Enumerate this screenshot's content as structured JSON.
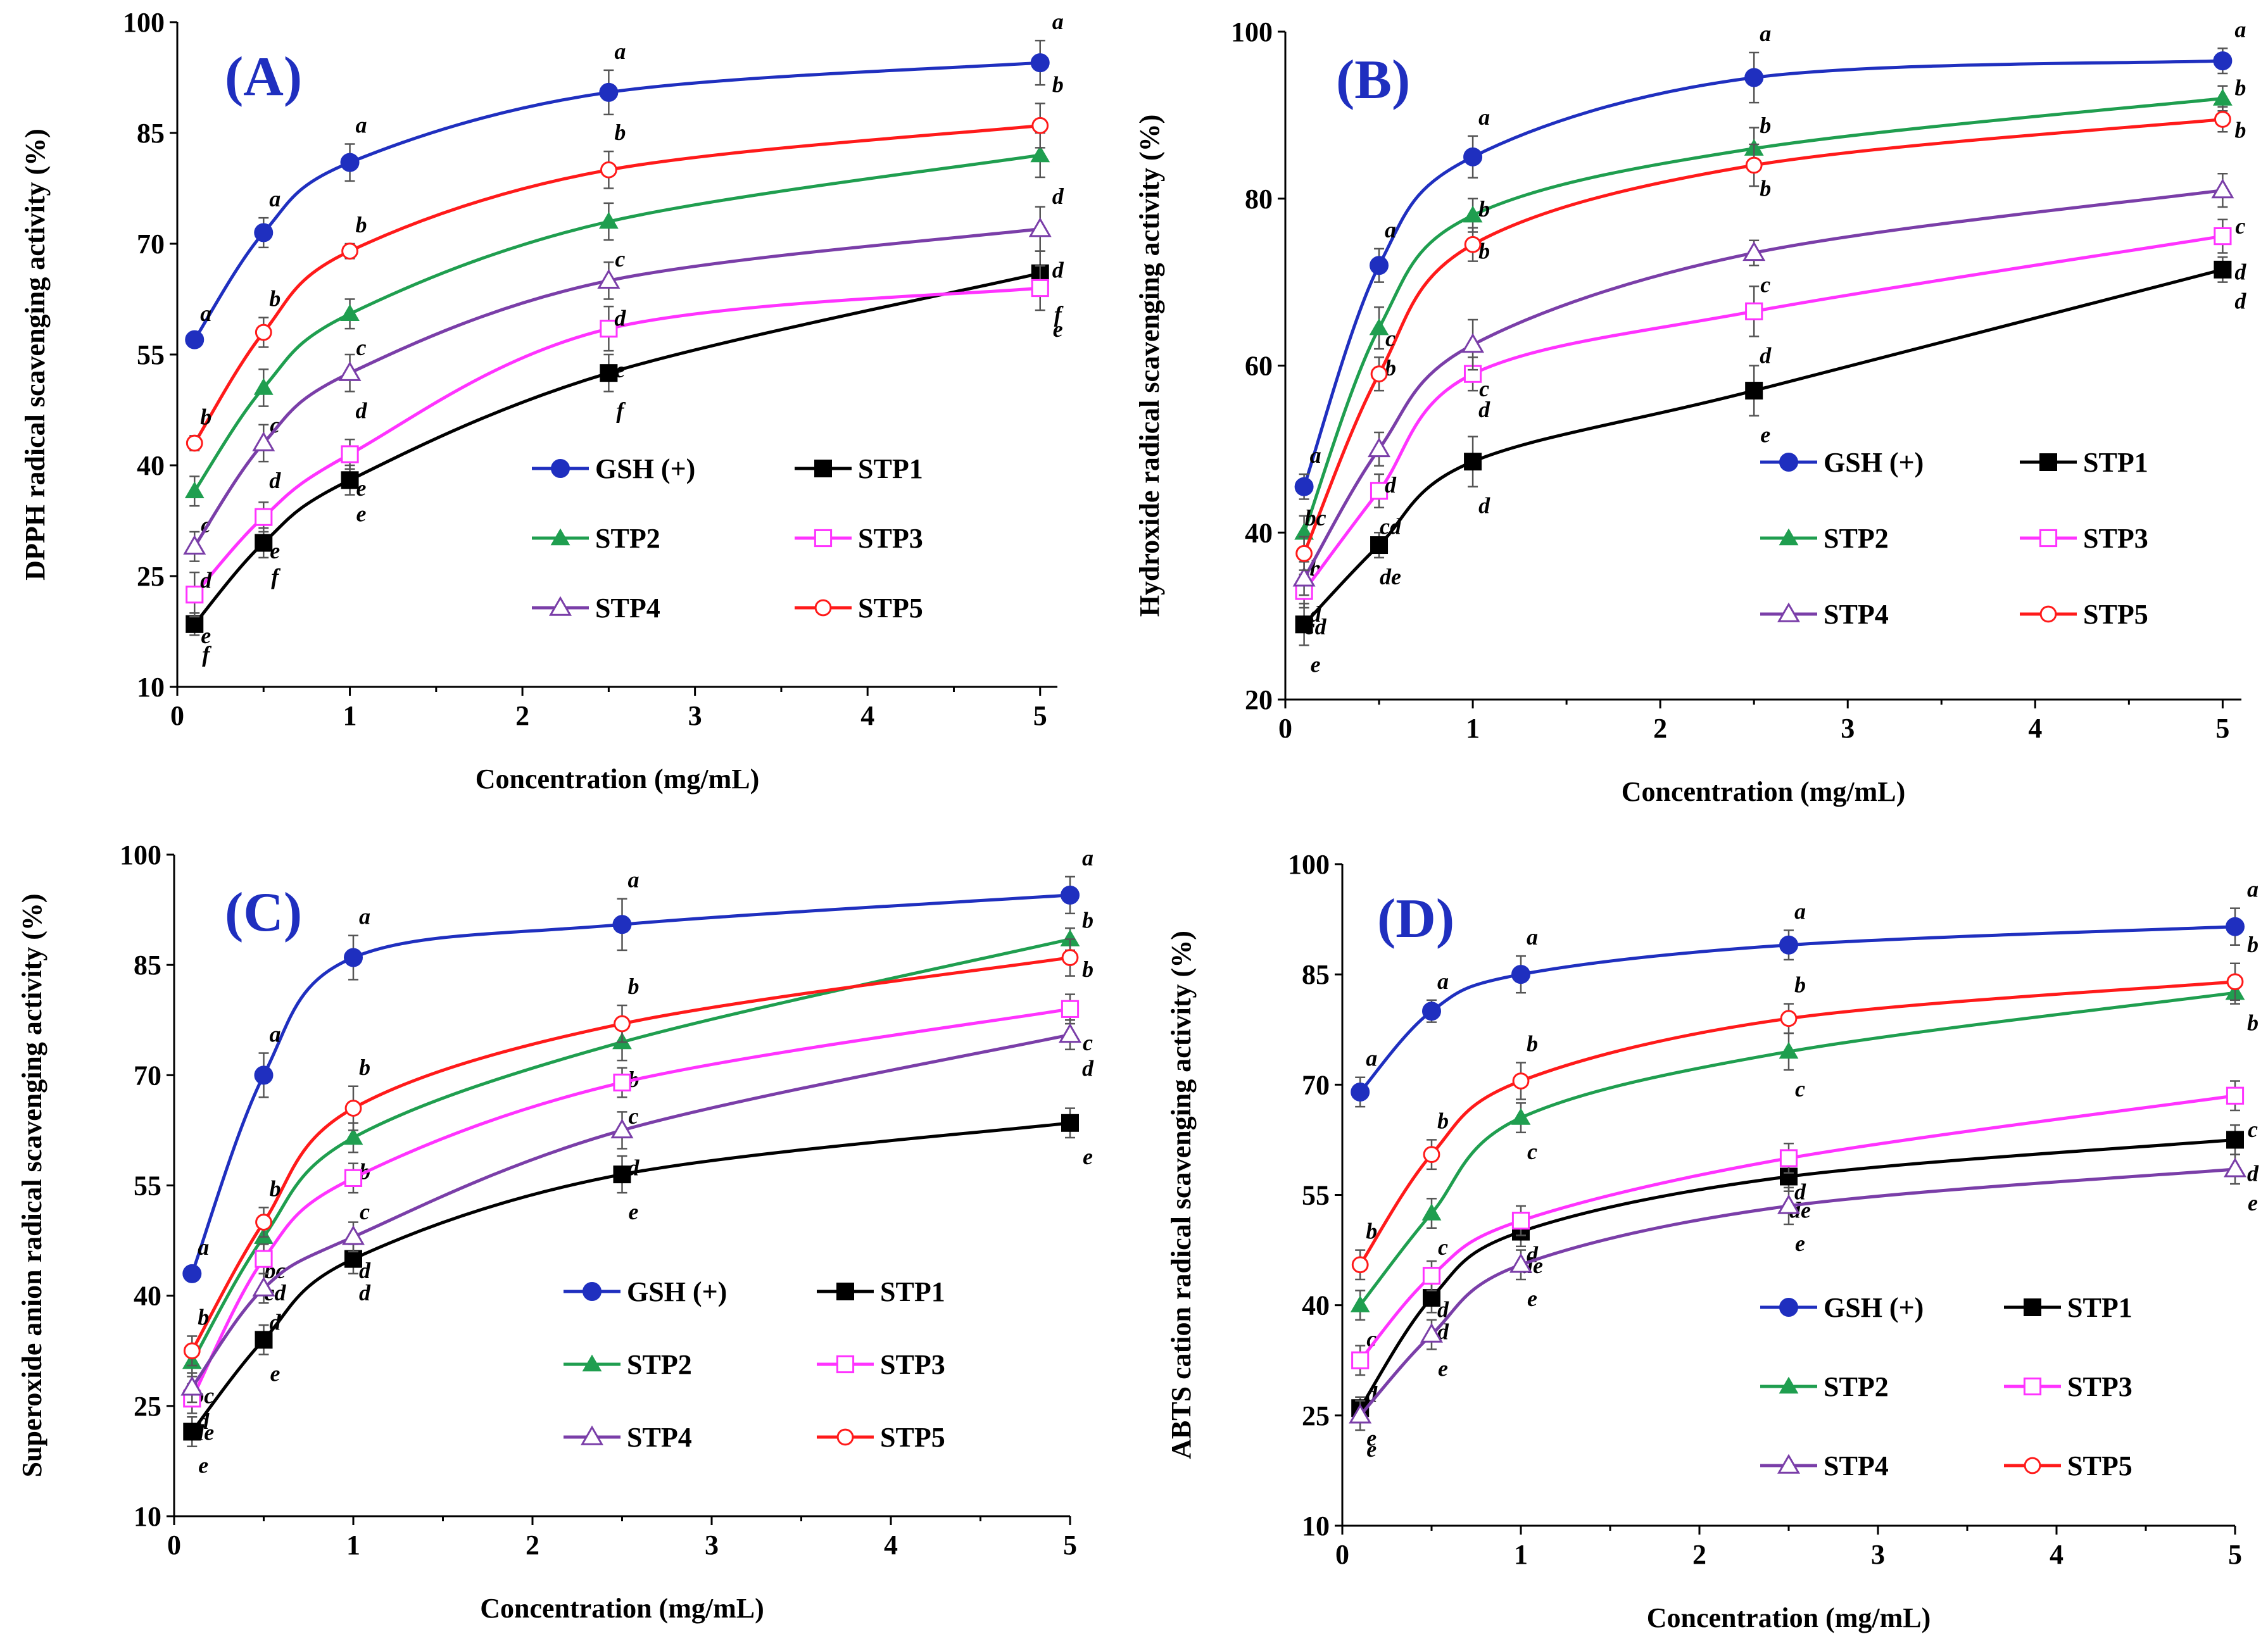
{
  "series_styles": [
    {
      "name": "GSH (+)",
      "color": "#1f2fbf",
      "marker": "filled-circle"
    },
    {
      "name": "STP1",
      "color": "#000000",
      "marker": "filled-square"
    },
    {
      "name": "STP2",
      "color": "#1f9e4f",
      "marker": "filled-triangle"
    },
    {
      "name": "STP3",
      "color": "#ff33ff",
      "marker": "open-square"
    },
    {
      "name": "STP4",
      "color": "#7a3ea8",
      "marker": "open-triangle"
    },
    {
      "name": "STP5",
      "color": "#ff1a1a",
      "marker": "open-circle"
    }
  ],
  "chart_data": [
    {
      "type": "line",
      "panel": "(A)",
      "title": "",
      "xlabel": "Concentration (mg/mL)",
      "ylabel": "DPPH radical scavenging activity (%)",
      "xlim": [
        0,
        5.1
      ],
      "ylim": [
        10,
        100
      ],
      "xticks": [
        "0",
        "1",
        "2",
        "3",
        "4",
        "5"
      ],
      "yticks": [
        "10",
        "25",
        "40",
        "55",
        "70",
        "85",
        "100"
      ],
      "x": [
        0.1,
        0.5,
        1,
        2.5,
        5
      ],
      "series": [
        {
          "name": "GSH (+)",
          "values": [
            57,
            71.5,
            81,
            90.5,
            94.5
          ],
          "errors": [
            1,
            2,
            2.5,
            3,
            3
          ],
          "letters": [
            "a",
            "a",
            "a",
            "a",
            "a"
          ]
        },
        {
          "name": "STP1",
          "values": [
            18.5,
            29.5,
            38,
            52.5,
            66
          ],
          "errors": [
            1.5,
            2,
            2,
            2.5,
            3
          ],
          "letters": [
            "f",
            "f",
            "e",
            "f",
            "f"
          ]
        },
        {
          "name": "STP2",
          "values": [
            36.5,
            50.5,
            60.5,
            73,
            82
          ],
          "errors": [
            2,
            2.5,
            2,
            2.5,
            3
          ],
          "letters": [
            "c",
            "c",
            "c",
            "c",
            "d"
          ]
        },
        {
          "name": "STP3",
          "values": [
            22.5,
            33,
            41.5,
            58.5,
            64
          ],
          "errors": [
            3,
            2,
            2,
            3,
            3
          ],
          "letters": [
            "e",
            "e",
            "e",
            "e",
            "e"
          ]
        },
        {
          "name": "STP4",
          "values": [
            29,
            43,
            52.5,
            65,
            72
          ],
          "errors": [
            2,
            2.5,
            2.5,
            2.5,
            3
          ],
          "letters": [
            "d",
            "d",
            "d",
            "d",
            "d"
          ]
        },
        {
          "name": "STP5",
          "values": [
            43,
            58,
            69,
            80,
            86
          ],
          "errors": [
            1,
            2,
            1,
            2.5,
            3
          ],
          "letters": [
            "b",
            "b",
            "b",
            "b",
            "b"
          ]
        }
      ]
    },
    {
      "type": "line",
      "panel": "(B)",
      "title": "",
      "xlabel": "Concentration (mg/mL)",
      "ylabel": "Hydroxide radical scavenging activity (%)",
      "xlim": [
        0,
        5.1
      ],
      "ylim": [
        20,
        100
      ],
      "xticks": [
        "0",
        "1",
        "2",
        "3",
        "4",
        "5"
      ],
      "yticks": [
        "20",
        "40",
        "60",
        "80",
        "100"
      ],
      "x": [
        0.1,
        0.5,
        1,
        2.5,
        5
      ],
      "series": [
        {
          "name": "GSH (+)",
          "values": [
            45.5,
            72,
            85,
            94.5,
            96.5
          ],
          "errors": [
            1.5,
            2,
            2.5,
            3,
            1.5
          ],
          "letters": [
            "a",
            "a",
            "a",
            "a",
            "a"
          ]
        },
        {
          "name": "STP1",
          "values": [
            29,
            38.5,
            48.5,
            57,
            71.5
          ],
          "errors": [
            2.5,
            1.5,
            3,
            3,
            1.5
          ],
          "letters": [
            "e",
            "de",
            "d",
            "e",
            "d"
          ]
        },
        {
          "name": "STP2",
          "values": [
            40,
            64.5,
            78,
            86,
            92
          ],
          "errors": [
            2,
            2.5,
            2,
            2.5,
            1.5
          ],
          "letters": [
            "b",
            "b",
            "b",
            "b",
            "b"
          ]
        },
        {
          "name": "STP3",
          "values": [
            33,
            45,
            59,
            66.5,
            75.5
          ],
          "errors": [
            2,
            2,
            2,
            3,
            2
          ],
          "letters": [
            "cd",
            "cd",
            "d",
            "d",
            "d"
          ]
        },
        {
          "name": "STP4",
          "values": [
            34.5,
            50,
            62.5,
            73.5,
            81
          ],
          "errors": [
            2,
            2,
            3,
            1.5,
            2
          ],
          "letters": [
            "d",
            "d",
            "c",
            "c",
            "c"
          ]
        },
        {
          "name": "STP5",
          "values": [
            37.5,
            59,
            74.5,
            84,
            89.5
          ],
          "errors": [
            2,
            2,
            2,
            2.5,
            1.5
          ],
          "letters": [
            "bc",
            "c",
            "b",
            "b",
            "b"
          ]
        }
      ]
    },
    {
      "type": "line",
      "panel": "(C)",
      "title": "",
      "xlabel": "Concentration (mg/mL)",
      "ylabel": "Superoxide anion radical scavenging activity (%)",
      "xlim": [
        0,
        5
      ],
      "ylim": [
        10,
        100
      ],
      "xticks": [
        "0",
        "1",
        "2",
        "3",
        "4",
        "5"
      ],
      "yticks": [
        "10",
        "25",
        "40",
        "55",
        "70",
        "85",
        "100"
      ],
      "x": [
        0.1,
        0.5,
        1,
        2.5,
        5
      ],
      "series": [
        {
          "name": "GSH (+)",
          "values": [
            43,
            70,
            86,
            90.5,
            94.5
          ],
          "errors": [
            1,
            3,
            3,
            3.5,
            2.5
          ],
          "letters": [
            "a",
            "a",
            "a",
            "a",
            "a"
          ]
        },
        {
          "name": "STP1",
          "values": [
            21.5,
            34,
            45,
            56.5,
            63.5
          ],
          "errors": [
            2,
            2,
            2,
            2.5,
            2
          ],
          "letters": [
            "e",
            "e",
            "d",
            "e",
            "e"
          ]
        },
        {
          "name": "STP2",
          "values": [
            31,
            48,
            61.5,
            74.5,
            88.5
          ],
          "errors": [
            2,
            2,
            2,
            2.5,
            1.5
          ],
          "letters": [
            "bc",
            "bc",
            "b",
            "b",
            "b"
          ]
        },
        {
          "name": "STP3",
          "values": [
            26,
            45,
            56,
            69,
            79
          ],
          "errors": [
            2,
            2,
            2,
            2,
            2
          ],
          "letters": [
            "de",
            "cd",
            "c",
            "c",
            "c"
          ]
        },
        {
          "name": "STP4",
          "values": [
            27.5,
            41,
            48,
            62.5,
            75.5
          ],
          "errors": [
            2,
            2,
            2,
            2.5,
            2
          ],
          "letters": [
            "d",
            "d",
            "d",
            "d",
            "d"
          ]
        },
        {
          "name": "STP5",
          "values": [
            32.5,
            50,
            65.5,
            77,
            86
          ],
          "errors": [
            2,
            2,
            3,
            2.5,
            2.5
          ],
          "letters": [
            "b",
            "b",
            "b",
            "b",
            "b"
          ]
        }
      ]
    },
    {
      "type": "line",
      "panel": "(D)",
      "title": "",
      "xlabel": "Concentration (mg/mL)",
      "ylabel": "ABTS cation radical scavenging activity (%)",
      "xlim": [
        0,
        5
      ],
      "ylim": [
        10,
        100
      ],
      "xticks": [
        "0",
        "1",
        "2",
        "3",
        "4",
        "5"
      ],
      "yticks": [
        "10",
        "25",
        "40",
        "55",
        "70",
        "85",
        "100"
      ],
      "x": [
        0.1,
        0.5,
        1,
        2.5,
        5
      ],
      "series": [
        {
          "name": "GSH (+)",
          "values": [
            69,
            80,
            85,
            89,
            91.5
          ],
          "errors": [
            2,
            1.5,
            2.5,
            2,
            2.5
          ],
          "letters": [
            "a",
            "a",
            "a",
            "a",
            "a"
          ]
        },
        {
          "name": "STP1",
          "values": [
            26,
            41,
            50,
            57.5,
            62.5
          ],
          "errors": [
            1.5,
            2,
            2,
            2,
            2
          ],
          "letters": [
            "e",
            "d",
            "de",
            "de",
            "d"
          ]
        },
        {
          "name": "STP2",
          "values": [
            40,
            52.5,
            65.5,
            74.5,
            82.5
          ],
          "errors": [
            2,
            2,
            2,
            2.5,
            1.5
          ],
          "letters": [
            "c",
            "c",
            "c",
            "c",
            "b"
          ]
        },
        {
          "name": "STP3",
          "values": [
            32.5,
            44,
            51.5,
            60,
            68.5
          ],
          "errors": [
            2,
            2,
            2,
            2,
            2
          ],
          "letters": [
            "d",
            "d",
            "d",
            "d",
            "c"
          ]
        },
        {
          "name": "STP4",
          "values": [
            25,
            36,
            45.5,
            53.5,
            58.5
          ],
          "errors": [
            2,
            2,
            2,
            2.5,
            2
          ],
          "letters": [
            "e",
            "e",
            "e",
            "e",
            "e"
          ]
        },
        {
          "name": "STP5",
          "values": [
            45.5,
            60.5,
            70.5,
            79,
            84
          ],
          "errors": [
            2,
            2,
            2.5,
            2,
            2.5
          ],
          "letters": [
            "b",
            "b",
            "b",
            "b",
            "b"
          ]
        }
      ]
    }
  ]
}
